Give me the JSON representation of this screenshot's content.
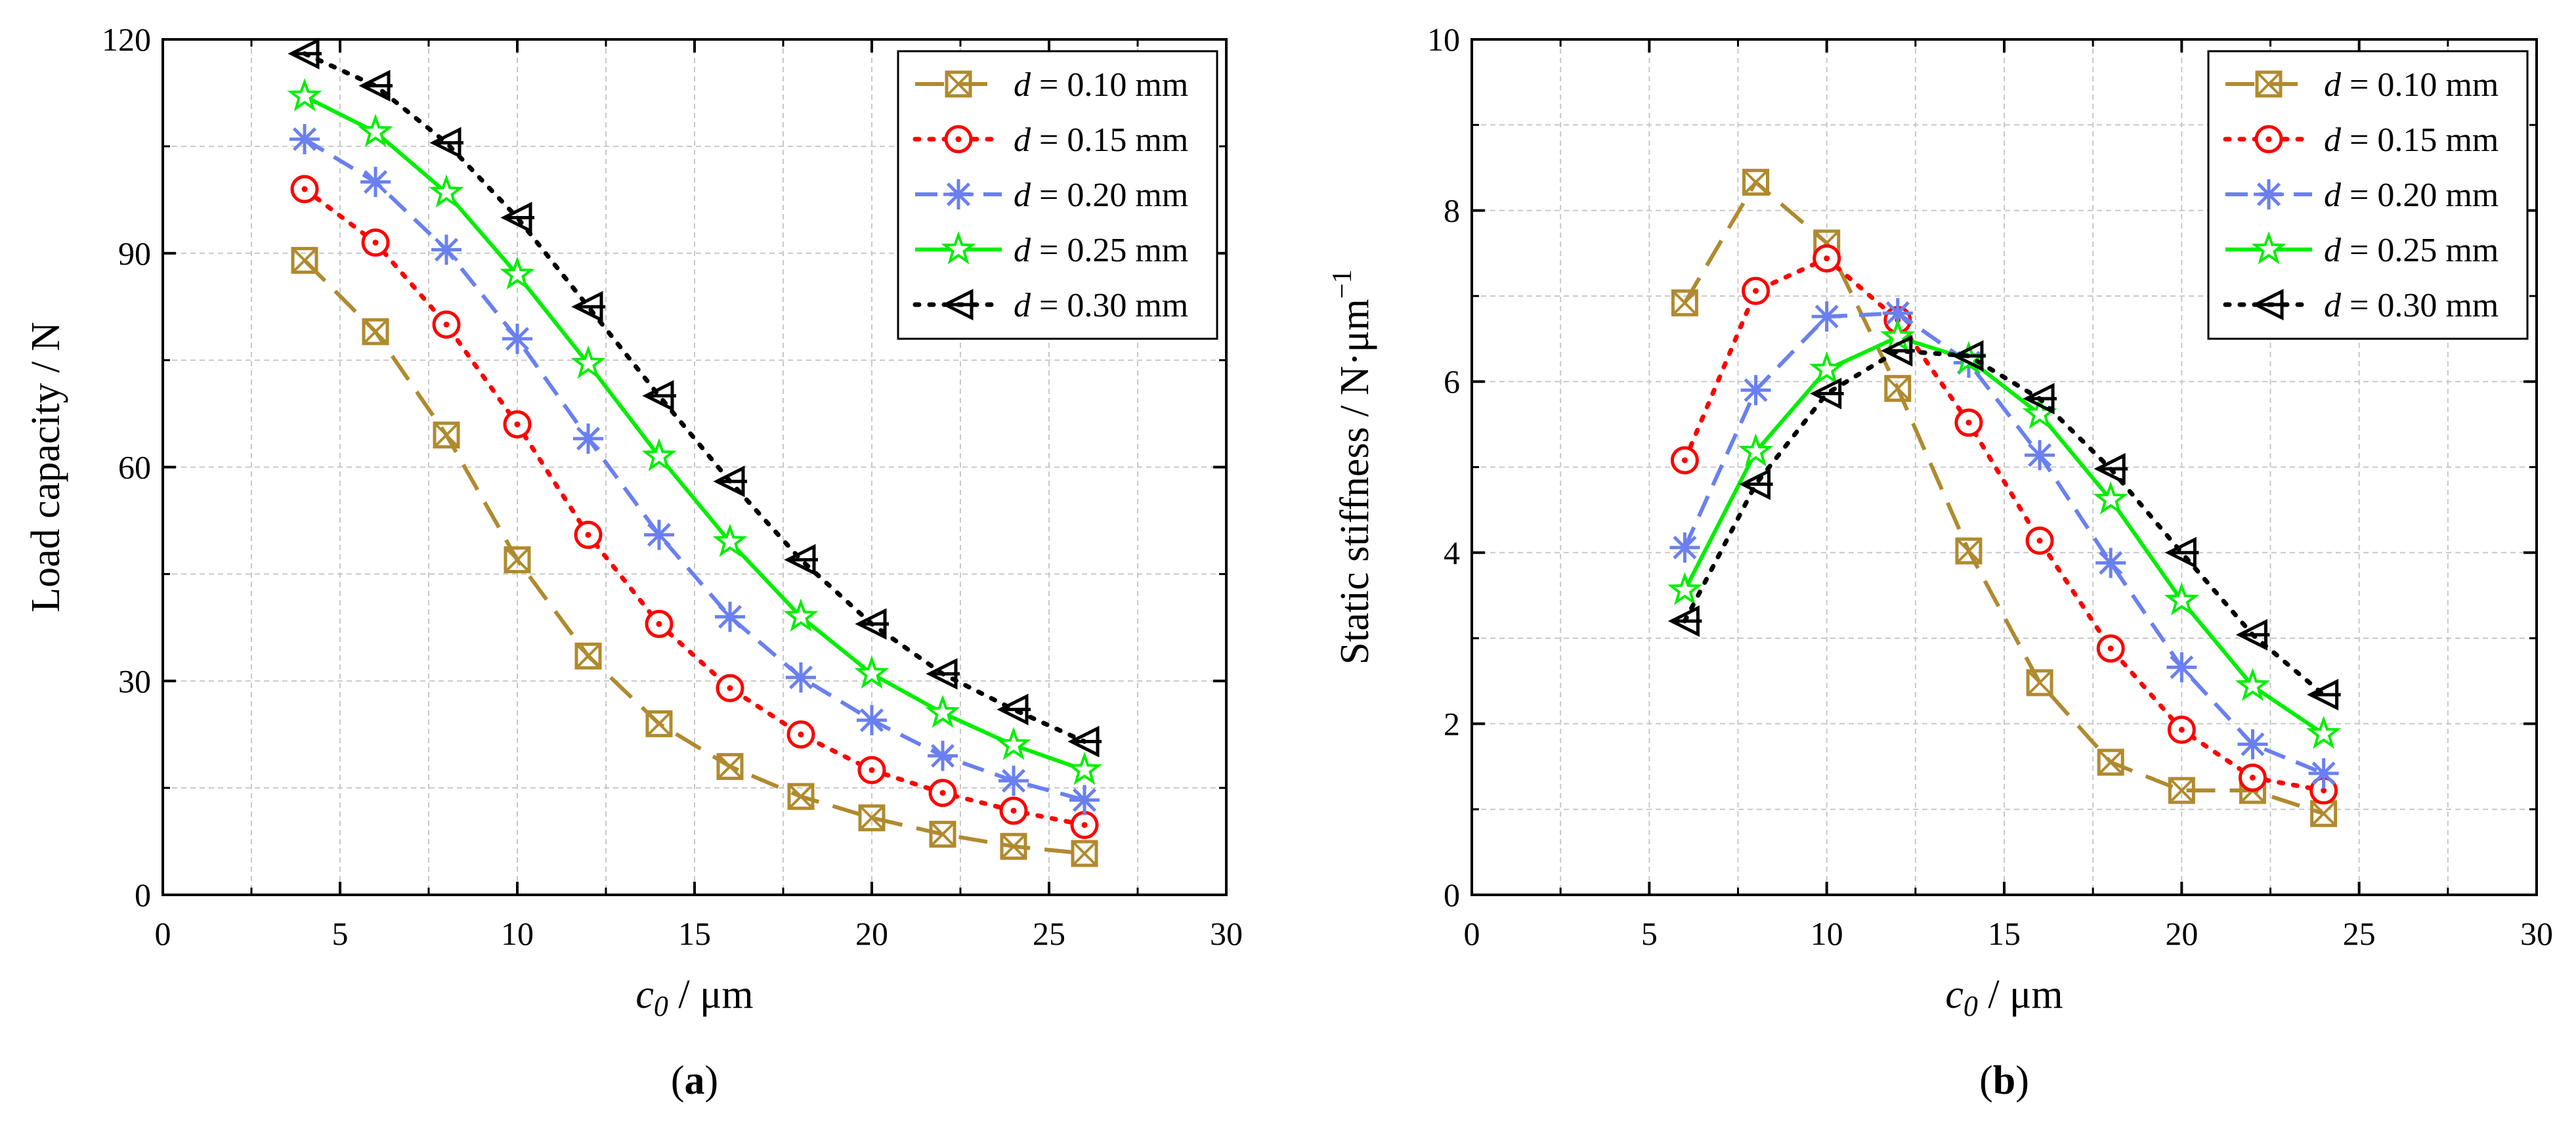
{
  "chart_data": [
    {
      "type": "line",
      "panel_label": "(a)",
      "panel_letter": "a",
      "xlabel": {
        "symbol": "c",
        "subscript": "0",
        "unit": " / μm"
      },
      "ylabel": "Load capacity / N",
      "xlim": [
        0,
        30
      ],
      "ylim": [
        0,
        120
      ],
      "xticks": [
        0,
        5,
        10,
        15,
        20,
        25,
        30
      ],
      "yticks": [
        0,
        30,
        60,
        90,
        120
      ],
      "grid": true,
      "legend_position": "top-right",
      "x": [
        4,
        6,
        8,
        10,
        12,
        14,
        16,
        18,
        20,
        22,
        24,
        26
      ],
      "series": [
        {
          "name": "d = 0.10 mm",
          "label_var": "d",
          "label_rest": " = 0.10 mm",
          "color": "#B08A2E",
          "marker": "square-x",
          "dash": "long-dash",
          "values": [
            89,
            79,
            64.5,
            47,
            33.5,
            24,
            18,
            13.8,
            10.8,
            8.5,
            6.8,
            5.8
          ]
        },
        {
          "name": "d = 0.15 mm",
          "label_var": "d",
          "label_rest": " = 0.15 mm",
          "color": "#FF0000",
          "marker": "circle-dot",
          "dash": "dot",
          "values": [
            99,
            91.5,
            80,
            66,
            50.5,
            38,
            29,
            22.5,
            17.5,
            14.3,
            11.8,
            9.8
          ]
        },
        {
          "name": "d = 0.20 mm",
          "label_var": "d",
          "label_rest": " = 0.20 mm",
          "color": "#6A80F0",
          "marker": "asterisk",
          "dash": "dash",
          "values": [
            106,
            100,
            90.5,
            78,
            64,
            50.5,
            39,
            30.5,
            24.5,
            19.5,
            16,
            13.3
          ]
        },
        {
          "name": "d = 0.25 mm",
          "label_var": "d",
          "label_rest": " = 0.25 mm",
          "color": "#00EE00",
          "marker": "star",
          "dash": "solid",
          "values": [
            112,
            107,
            98.5,
            87,
            74.5,
            61.5,
            49.5,
            39,
            31,
            25.5,
            21,
            17.5
          ]
        },
        {
          "name": "d = 0.30 mm",
          "label_var": "d",
          "label_rest": " = 0.30 mm",
          "color": "#000000",
          "marker": "tri-left",
          "dash": "dot",
          "values": [
            118,
            113.5,
            105.5,
            95,
            82.5,
            70,
            58,
            47,
            38,
            31,
            26,
            21.5
          ]
        }
      ]
    },
    {
      "type": "line",
      "panel_label": "(b)",
      "panel_letter": "b",
      "xlabel": {
        "symbol": "c",
        "subscript": "0",
        "unit": " / μm"
      },
      "ylabel": "Static stiffness / N·μm",
      "ylabel_superscript": "−1",
      "xlim": [
        0,
        30
      ],
      "ylim": [
        0,
        10
      ],
      "xticks": [
        0,
        5,
        10,
        15,
        20,
        25,
        30
      ],
      "yticks": [
        0,
        2,
        4,
        6,
        8,
        10
      ],
      "grid": true,
      "legend_position": "top-right",
      "x": [
        6,
        8,
        10,
        12,
        14,
        16,
        18,
        20,
        22,
        24
      ],
      "series": [
        {
          "name": "d = 0.10 mm",
          "label_var": "d",
          "label_rest": " = 0.10 mm",
          "color": "#B08A2E",
          "marker": "square-x",
          "dash": "long-dash",
          "values": [
            6.92,
            8.33,
            7.62,
            5.92,
            4.02,
            2.48,
            1.55,
            1.22,
            1.22,
            0.95
          ]
        },
        {
          "name": "d = 0.15 mm",
          "label_var": "d",
          "label_rest": " = 0.15 mm",
          "color": "#FF0000",
          "marker": "circle-dot",
          "dash": "dot",
          "values": [
            5.08,
            7.06,
            7.44,
            6.72,
            5.52,
            4.14,
            2.88,
            1.93,
            1.37,
            1.22
          ]
        },
        {
          "name": "d = 0.20 mm",
          "label_var": "d",
          "label_rest": " = 0.20 mm",
          "color": "#6A80F0",
          "marker": "asterisk",
          "dash": "dash",
          "values": [
            4.06,
            5.9,
            6.76,
            6.8,
            6.22,
            5.14,
            3.88,
            2.66,
            1.76,
            1.42
          ]
        },
        {
          "name": "d = 0.25 mm",
          "label_var": "d",
          "label_rest": " = 0.25 mm",
          "color": "#00EE00",
          "marker": "star",
          "dash": "solid",
          "values": [
            3.56,
            5.18,
            6.14,
            6.52,
            6.26,
            5.62,
            4.62,
            3.44,
            2.44,
            1.88
          ]
        },
        {
          "name": "d = 0.30 mm",
          "label_var": "d",
          "label_rest": " = 0.30 mm",
          "color": "#000000",
          "marker": "tri-left",
          "dash": "dot",
          "values": [
            3.2,
            4.8,
            5.86,
            6.36,
            6.3,
            5.8,
            4.98,
            4.0,
            3.04,
            2.34
          ]
        }
      ]
    }
  ]
}
